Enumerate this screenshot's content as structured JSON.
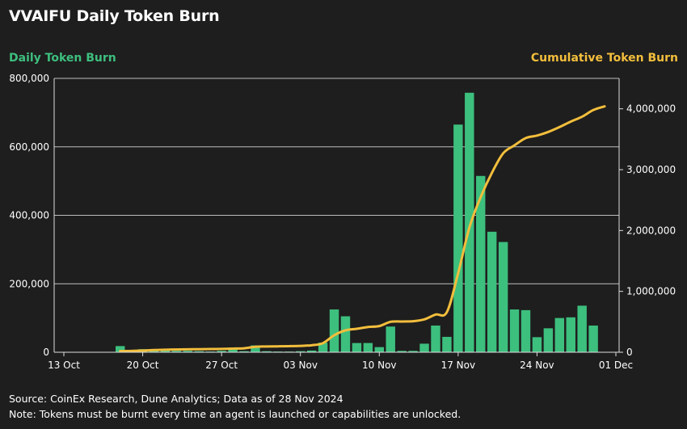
{
  "chart_data": {
    "type": "bar+line",
    "title": "VVAIFU Daily Token Burn",
    "left_axis": {
      "label": "Daily Token Burn",
      "color": "#3dbf7e",
      "ylim": [
        0,
        800000
      ],
      "ticks": [
        0,
        200000,
        400000,
        600000,
        800000
      ],
      "tick_labels": [
        "0",
        "200,000",
        "400,000",
        "600,000",
        "800,000"
      ]
    },
    "right_axis": {
      "label": "Cumulative Token Burn",
      "color": "#f2be3c",
      "ylim": [
        0,
        4500000
      ],
      "ticks": [
        0,
        1000000,
        2000000,
        3000000,
        4000000
      ],
      "tick_labels": [
        "0",
        "1,000,000",
        "2,000,000",
        "3,000,000",
        "4,000,000"
      ]
    },
    "x_axis": {
      "start_day": 0,
      "end_day": 49,
      "ticks": [
        0,
        7,
        14,
        21,
        28,
        35,
        42,
        49
      ],
      "tick_labels": [
        "13 Oct",
        "20 Oct",
        "27 Oct",
        "03 Nov",
        "10 Nov",
        "17 Nov",
        "24 Nov",
        "01 Dec"
      ]
    },
    "series": [
      {
        "name": "Daily Token Burn",
        "type": "bar",
        "axis": "left",
        "days": [
          5,
          6,
          7,
          8,
          9,
          10,
          11,
          12,
          13,
          14,
          15,
          16,
          17,
          18,
          19,
          20,
          21,
          22,
          23,
          24,
          25,
          26,
          27,
          28,
          29,
          30,
          31,
          32,
          33,
          34,
          35,
          36,
          37,
          38,
          39,
          40,
          41,
          42,
          43,
          44,
          45
        ],
        "values": [
          18000,
          4000,
          9000,
          9000,
          9000,
          4000,
          4000,
          3000,
          2000,
          4000,
          10000,
          3000,
          20000,
          3000,
          2000,
          2000,
          3000,
          5000,
          28000,
          125000,
          105000,
          27000,
          27000,
          15000,
          75000,
          4000,
          4000,
          25000,
          78000,
          45000,
          665000,
          758000,
          515000,
          352000,
          322000,
          125000,
          123000,
          44000,
          70000,
          100000,
          102000
        ]
      },
      {
        "name": "Cumulative Token Burn",
        "type": "line",
        "axis": "right",
        "days": [
          5,
          6,
          7,
          8,
          9,
          10,
          11,
          12,
          13,
          14,
          15,
          16,
          17,
          18,
          19,
          20,
          21,
          22,
          23,
          24,
          25,
          26,
          27,
          28,
          29,
          30,
          31,
          32,
          33,
          34,
          35,
          36,
          37,
          38,
          39,
          40,
          41,
          42,
          43,
          44,
          45,
          46,
          47,
          48
        ],
        "values": [
          20000,
          22000,
          28000,
          37000,
          42000,
          45000,
          48000,
          50000,
          53000,
          55000,
          60000,
          65000,
          90000,
          95000,
          97000,
          100000,
          105000,
          115000,
          150000,
          280000,
          360000,
          385000,
          415000,
          430000,
          500000,
          505000,
          510000,
          540000,
          620000,
          660000,
          1300000,
          2050000,
          2550000,
          2950000,
          3270000,
          3400000,
          3520000,
          3560000,
          3620000,
          3700000,
          3790000,
          3870000,
          3980000,
          4040000
        ]
      }
    ],
    "extra_bars": [
      {
        "day": 46,
        "value": 136000
      },
      {
        "day": 47,
        "value": 78000
      }
    ]
  },
  "footer": {
    "source": "Source: CoinEx Research, Dune Analytics; Data as of 28 Nov 2024",
    "note": "Note: Tokens must be burnt every time an agent is launched or capabilities are unlocked."
  }
}
